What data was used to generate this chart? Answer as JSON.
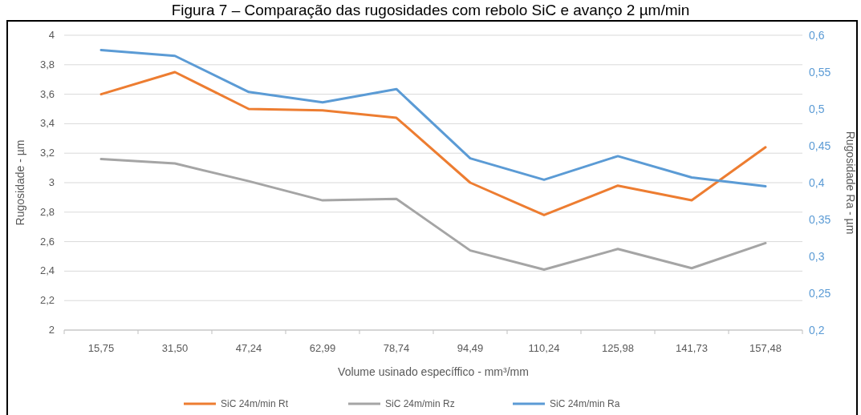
{
  "chart_data": {
    "type": "line",
    "title": "Figura 7 – Comparação das rugosidades com rebolo SiC e avanço 2 µm/min",
    "xlabel": "Volume usinado específfico - mm³/mm",
    "ylabel": "Rugosidade - µm",
    "y2label": "Rugosidade Ra - µm",
    "categories": [
      "15,75",
      "31,50",
      "47,24",
      "62,99",
      "78,74",
      "94,49",
      "110,24",
      "125,98",
      "141,73",
      "157,48"
    ],
    "series": [
      {
        "name": "SiC 24m/min Rt",
        "color": "#ed7d31",
        "values": [
          3.6,
          3.75,
          3.5,
          3.49,
          3.44,
          3.0,
          2.78,
          2.98,
          2.88,
          3.24
        ]
      },
      {
        "name": "SiC 24m/min Rz",
        "color": "#a5a5a5",
        "values": [
          3.16,
          3.13,
          3.01,
          2.88,
          2.89,
          2.54,
          2.41,
          2.55,
          2.42,
          2.59
        ]
      },
      {
        "name": "SiC 24m/min Ra",
        "color": "#5b9bd5",
        "axis": "y2",
        "values": [
          0.58,
          0.572,
          0.523,
          0.509,
          0.527,
          0.433,
          0.404,
          0.436,
          0.407,
          0.395
        ]
      }
    ],
    "ylim": [
      2,
      4
    ],
    "yticks": [
      {
        "value": 2,
        "label": "2"
      },
      {
        "value": 2.2,
        "label": "2,2"
      },
      {
        "value": 2.4,
        "label": "2,4"
      },
      {
        "value": 2.6,
        "label": "2,6"
      },
      {
        "value": 2.8,
        "label": "2,8"
      },
      {
        "value": 3,
        "label": "3"
      },
      {
        "value": 3.2,
        "label": "3,2"
      },
      {
        "value": 3.4,
        "label": "3,4"
      },
      {
        "value": 3.6,
        "label": "3,6"
      },
      {
        "value": 3.8,
        "label": "3,8"
      },
      {
        "value": 4,
        "label": "4"
      }
    ],
    "y2lim": [
      0.2,
      0.6
    ],
    "y2ticks": [
      {
        "value": 0.2,
        "label": "0,2"
      },
      {
        "value": 0.25,
        "label": "0,25"
      },
      {
        "value": 0.3,
        "label": "0,3"
      },
      {
        "value": 0.35,
        "label": "0,35"
      },
      {
        "value": 0.4,
        "label": "0,4"
      },
      {
        "value": 0.45,
        "label": "0,45"
      },
      {
        "value": 0.5,
        "label": "0,5"
      },
      {
        "value": 0.55,
        "label": "0,55"
      },
      {
        "value": 0.6,
        "label": "0,6"
      }
    ],
    "grid": "y",
    "legend": "bottom",
    "marker": "none",
    "line_style": "solid"
  }
}
